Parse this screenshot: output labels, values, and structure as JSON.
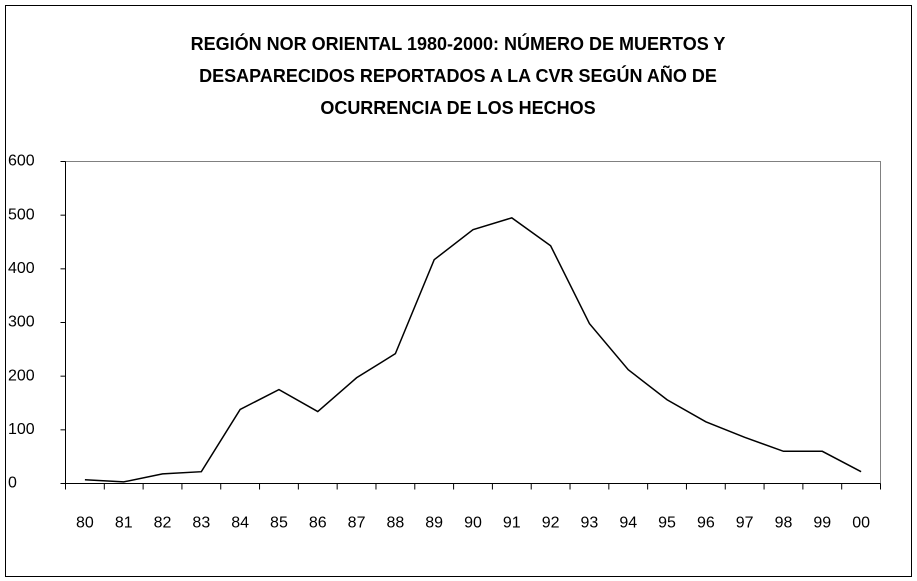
{
  "chart_data": {
    "type": "line",
    "title": [
      "REGIÓN NOR ORIENTAL 1980-2000: NÚMERO DE MUERTOS Y",
      "DESAPARECIDOS REPORTADOS A LA CVR SEGÚN AÑO DE",
      "OCURRENCIA DE LOS HECHOS"
    ],
    "categories": [
      "80",
      "81",
      "82",
      "83",
      "84",
      "85",
      "86",
      "87",
      "88",
      "89",
      "90",
      "91",
      "92",
      "93",
      "94",
      "95",
      "96",
      "97",
      "98",
      "99",
      "00"
    ],
    "values": [
      7,
      3,
      18,
      22,
      138,
      175,
      134,
      197,
      242,
      417,
      473,
      495,
      443,
      298,
      212,
      156,
      115,
      86,
      60,
      60,
      22
    ],
    "color": "#000000",
    "ylim": [
      0,
      600
    ],
    "yticks": [
      0,
      100,
      200,
      300,
      400,
      500,
      600
    ],
    "grid": false
  }
}
